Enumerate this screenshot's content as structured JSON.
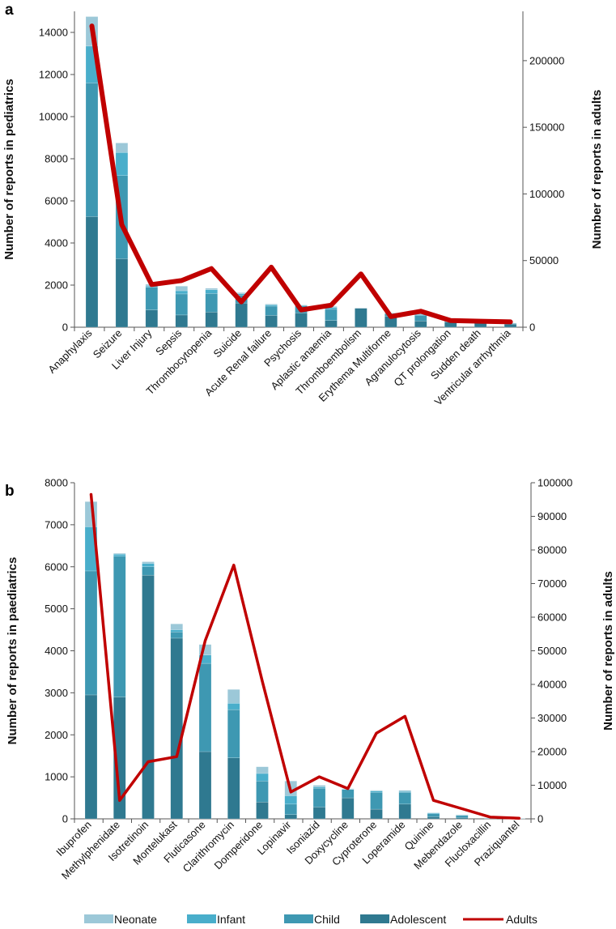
{
  "colors": {
    "neonate": "#9cc8d8",
    "infant": "#49aecb",
    "child": "#3e98b2",
    "adolescent": "#2f7990",
    "adults": "#c00000",
    "axis": "#555555"
  },
  "legend": [
    {
      "key": "neonate",
      "label": "Neonate"
    },
    {
      "key": "infant",
      "label": "Infant"
    },
    {
      "key": "child",
      "label": "Child"
    },
    {
      "key": "adolescent",
      "label": "Adolescent"
    },
    {
      "key": "adults",
      "label": "Adults"
    }
  ],
  "chart_data": [
    {
      "panel": "a",
      "type": "bar",
      "stacked": true,
      "secondary_type": "line",
      "ylabel": "Number of reports in pediatrics",
      "y2label": "Number of reports in adults",
      "ylim": [
        0,
        15000
      ],
      "y2lim": [
        0,
        237000
      ],
      "yticks": [
        0,
        2000,
        4000,
        6000,
        8000,
        10000,
        12000,
        14000
      ],
      "y2ticks": [
        0,
        50000,
        100000,
        150000,
        200000
      ],
      "categories": [
        "Anaphylaxis",
        "Seizure",
        "Liver Injury",
        "Sepsis",
        "Thrombocytopenia",
        "Suicide",
        "Acute Renal failure",
        "Psychosis",
        "Aplastic anaemia",
        "Thromboembolism",
        "Erythema Multiforme",
        "Agranulocytosis",
        "QT prolongation",
        "Sudden death",
        "Ventricular arrhythmia"
      ],
      "series": [
        {
          "name": "Adolescent",
          "key": "adolescent",
          "values": [
            5250,
            3250,
            820,
            580,
            720,
            1150,
            560,
            680,
            320,
            900,
            520,
            300,
            240,
            210,
            150
          ]
        },
        {
          "name": "Child",
          "key": "child",
          "values": [
            6350,
            3950,
            1080,
            1000,
            880,
            380,
            440,
            340,
            530,
            0,
            120,
            260,
            60,
            50,
            30
          ]
        },
        {
          "name": "Infant",
          "key": "infant",
          "values": [
            1750,
            1100,
            60,
            150,
            180,
            60,
            60,
            20,
            90,
            0,
            30,
            40,
            10,
            10,
            10
          ]
        },
        {
          "name": "Neonate",
          "key": "neonate",
          "values": [
            1400,
            450,
            80,
            220,
            70,
            50,
            40,
            20,
            50,
            0,
            10,
            50,
            10,
            10,
            10
          ]
        },
        {
          "name": "Adults",
          "key": "adults",
          "axis": "right",
          "values": [
            226000,
            77000,
            32000,
            35000,
            44000,
            19000,
            45000,
            13000,
            16500,
            40000,
            8000,
            12000,
            5000,
            4500,
            4000
          ]
        }
      ]
    },
    {
      "panel": "b",
      "type": "bar",
      "stacked": true,
      "secondary_type": "line",
      "ylabel": "Number of reports in paediatrics",
      "y2label": "Number of reports in adults",
      "ylim": [
        0,
        8000
      ],
      "y2lim": [
        0,
        100000
      ],
      "yticks": [
        0,
        1000,
        2000,
        3000,
        4000,
        5000,
        6000,
        7000,
        8000
      ],
      "y2ticks": [
        0,
        10000,
        20000,
        30000,
        40000,
        50000,
        60000,
        70000,
        80000,
        90000,
        100000
      ],
      "categories": [
        "Ibuprofen",
        "Methylphenidate",
        "Isotretinoin",
        "Montelukast",
        "Fluticasone",
        "Clarithromycin",
        "Domperidone",
        "Lopinavir",
        "Isoniazid",
        "Doxycycline",
        "Cyproterone",
        "Loperamide",
        "Quinine",
        "Mebendazole",
        "Flucloxacillin",
        "Praziquantel"
      ],
      "series": [
        {
          "name": "Adolescent",
          "key": "adolescent",
          "values": [
            2950,
            2900,
            5800,
            4300,
            1600,
            1450,
            400,
            100,
            280,
            500,
            230,
            350,
            50,
            30,
            10,
            5
          ]
        },
        {
          "name": "Child",
          "key": "child",
          "values": [
            2950,
            3350,
            200,
            150,
            2100,
            1150,
            500,
            250,
            450,
            200,
            400,
            280,
            70,
            50,
            5,
            5
          ]
        },
        {
          "name": "Infant",
          "key": "infant",
          "values": [
            1050,
            50,
            80,
            50,
            200,
            150,
            180,
            200,
            30,
            10,
            30,
            20,
            20,
            10,
            5,
            0
          ]
        },
        {
          "name": "Neonate",
          "key": "neonate",
          "values": [
            600,
            20,
            40,
            140,
            250,
            330,
            160,
            350,
            40,
            10,
            20,
            30,
            10,
            10,
            0,
            0
          ]
        },
        {
          "name": "Adults",
          "key": "adults",
          "axis": "right",
          "values": [
            96500,
            5500,
            17000,
            18500,
            53000,
            75500,
            41000,
            8000,
            12500,
            9000,
            25500,
            30500,
            5500,
            3000,
            500,
            200
          ]
        }
      ]
    }
  ]
}
